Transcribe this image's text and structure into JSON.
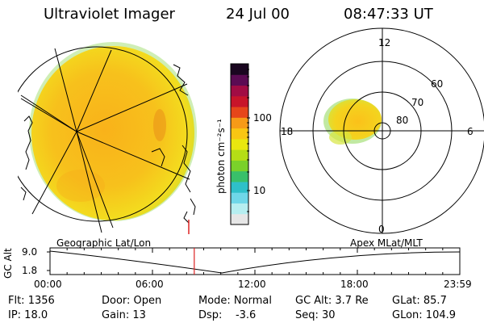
{
  "header": {
    "instrument": "Ultraviolet Imager",
    "date": "24 Jul 00",
    "time": "08:47:33 UT"
  },
  "colorbar": {
    "unit_label": "photon cm⁻²s⁻¹",
    "tick_100": "100",
    "tick_10": "10",
    "colors": [
      "#e6e6e6",
      "#b6eef0",
      "#6fd7e8",
      "#2fc0c9",
      "#39c06a",
      "#7ad12a",
      "#b5de16",
      "#e9e70f",
      "#f9c613",
      "#f79a17",
      "#e6461a",
      "#c8142a",
      "#a10c44",
      "#5b0b53",
      "#1a0620"
    ]
  },
  "polar_plot": {
    "mlt_labels": {
      "top": "12",
      "left": "18",
      "right": "6",
      "bottom": "0"
    },
    "lat_labels": [
      "60",
      "70",
      "80"
    ]
  },
  "timeline": {
    "left_label": "Geographic Lat/Lon",
    "right_label": "Apex MLat/MLT",
    "y_axis_label": "GC Alt",
    "y_top": "9.0",
    "y_bottom": "1.8",
    "x_ticks": [
      "00:00",
      "06:00",
      "12:00",
      "18:00",
      "23:59"
    ],
    "current_time_fraction": 0.352
  },
  "status": {
    "row1": {
      "flt": "Flt: 1356",
      "door": "Door: Open",
      "mode": "Mode: Normal",
      "gc_alt": "GC Alt: 3.7 Re",
      "glat": "GLat: 85.7"
    },
    "row2": {
      "ip": "IP: 18.0",
      "gain": "Gain: 13",
      "dsp": "Dsp:    -3.6",
      "seq": "Seq: 30",
      "glon": "GLon: 104.9"
    }
  }
}
